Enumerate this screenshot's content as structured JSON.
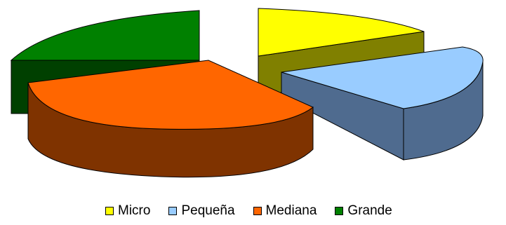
{
  "chart_data": {
    "type": "pie",
    "style": "3d-exploded",
    "categories": [
      "Micro",
      "Pequeña",
      "Mediana",
      "Grande"
    ],
    "values": [
      18,
      22,
      36,
      24
    ],
    "colors": {
      "top": [
        "#ffff00",
        "#99ccff",
        "#ff6600",
        "#008000"
      ],
      "side": [
        "#808000",
        "#4f6b8f",
        "#7f3300",
        "#004000"
      ]
    },
    "title": "",
    "legend_position": "bottom"
  }
}
